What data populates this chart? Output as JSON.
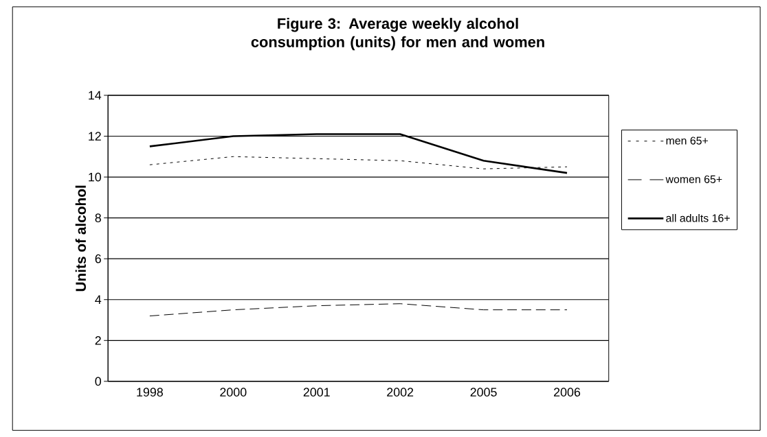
{
  "chart_data": {
    "type": "line",
    "title": "Figure 3: Average weekly alcohol consumption (units) for men and women",
    "ylabel": "Units of alcohol",
    "categories": [
      "1998",
      "2000",
      "2001",
      "2002",
      "2005",
      "2006"
    ],
    "series": [
      {
        "name": "men 65+",
        "color": "#000000",
        "line_style": "dotted",
        "values": [
          10.6,
          11.0,
          10.9,
          10.8,
          10.4,
          10.5
        ]
      },
      {
        "name": "women 65+",
        "color": "#000000",
        "line_style": "dashed",
        "values": [
          3.2,
          3.5,
          3.7,
          3.8,
          3.5,
          3.5
        ]
      },
      {
        "name": "all adults 16+",
        "color": "#000000",
        "line_style": "solid",
        "values": [
          11.5,
          12.0,
          12.1,
          12.1,
          10.8,
          10.2
        ]
      }
    ],
    "ylim": [
      0,
      14
    ],
    "yticks": [
      0,
      2,
      4,
      6,
      8,
      10,
      12,
      14
    ],
    "grid": "y",
    "legend": "right",
    "marker": "none"
  }
}
